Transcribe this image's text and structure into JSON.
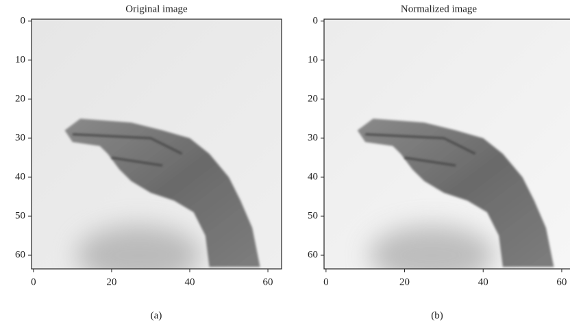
{
  "chart_data": [
    {
      "type": "image",
      "title": "Original image",
      "caption": "(a)",
      "xlim": [
        -0.5,
        63.5
      ],
      "ylim": [
        63.5,
        -0.5
      ],
      "xticks": [
        0,
        20,
        40,
        60
      ],
      "yticks": [
        0,
        10,
        20,
        30,
        40,
        50,
        60
      ]
    },
    {
      "type": "image",
      "title": "Normalized image",
      "caption": "(b)",
      "xlim": [
        -0.5,
        63.5
      ],
      "ylim": [
        63.5,
        -0.5
      ],
      "xticks": [
        0,
        20,
        40,
        60
      ],
      "yticks": [
        0,
        10,
        20,
        30,
        40,
        50,
        60
      ]
    }
  ]
}
